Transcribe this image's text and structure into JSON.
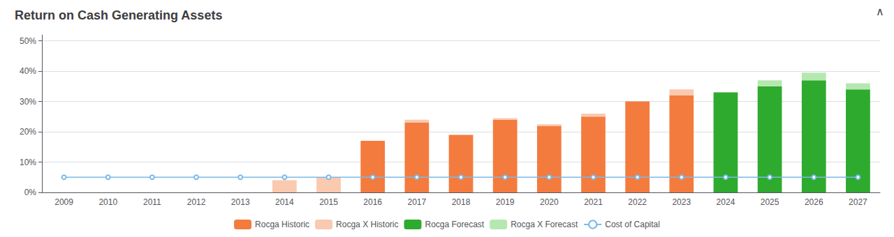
{
  "chart_data": {
    "type": "bar",
    "title": "Return on Cash Generating Assets",
    "annotations": [
      "∧"
    ],
    "categories": [
      "2009",
      "2010",
      "2011",
      "2012",
      "2013",
      "2014",
      "2015",
      "2016",
      "2017",
      "2018",
      "2019",
      "2020",
      "2021",
      "2022",
      "2023",
      "2024",
      "2025",
      "2026",
      "2027"
    ],
    "stacked": true,
    "series": [
      {
        "name": "Rocga Historic",
        "type": "bar",
        "color": "#f47b3e",
        "values": [
          0,
          0,
          0,
          0,
          0,
          0,
          0,
          17,
          23,
          19,
          24,
          22,
          25,
          30,
          32,
          0,
          0,
          0,
          0
        ]
      },
      {
        "name": "Rocga X Historic",
        "type": "bar",
        "color": "#f9c9b0",
        "values": [
          0,
          0,
          0,
          0,
          0,
          4,
          5,
          0,
          1,
          0,
          0.5,
          0.5,
          1,
          0,
          2,
          0,
          0,
          0,
          0
        ]
      },
      {
        "name": "Rocga Forecast",
        "type": "bar",
        "color": "#2eaa2e",
        "values": [
          0,
          0,
          0,
          0,
          0,
          0,
          0,
          0,
          0,
          0,
          0,
          0,
          0,
          0,
          0,
          33,
          35,
          37,
          34
        ]
      },
      {
        "name": "Rocga X Forecast",
        "type": "bar",
        "color": "#b5e8b0",
        "values": [
          0,
          0,
          0,
          0,
          0,
          0,
          0,
          0,
          0,
          0,
          0,
          0,
          0,
          0,
          0,
          0,
          2,
          2.5,
          2
        ]
      },
      {
        "name": "Cost of Capital",
        "type": "line",
        "color": "#7ab9e8",
        "marker": "circle",
        "line_style": "solid",
        "values": [
          5,
          5,
          5,
          5,
          5,
          5,
          5,
          5,
          5,
          5,
          5,
          5,
          5,
          5,
          5,
          5,
          5,
          5,
          5
        ]
      }
    ],
    "ylim": [
      0,
      52
    ],
    "yticks": [
      {
        "value": 0,
        "label": "0%"
      },
      {
        "value": 10,
        "label": "10%"
      },
      {
        "value": 20,
        "label": "20%"
      },
      {
        "value": 30,
        "label": "30%"
      },
      {
        "value": 40,
        "label": "40%"
      },
      {
        "value": 50,
        "label": "50%"
      }
    ],
    "grid": true,
    "legend": "bottom"
  }
}
